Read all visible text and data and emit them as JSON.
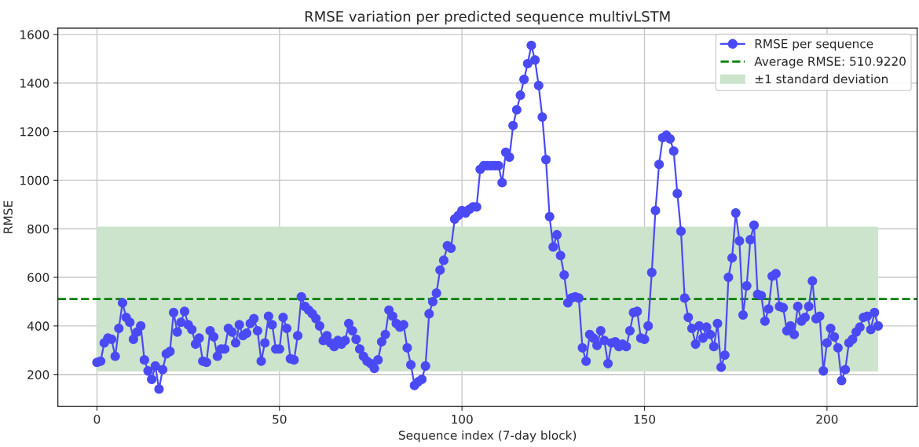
{
  "chart_data": {
    "type": "line",
    "title": "RMSE variation per predicted sequence multivLSTM",
    "xlabel": "Sequence index (7-day block)",
    "ylabel": "RMSE",
    "x": [
      0,
      1,
      2,
      3,
      4,
      5,
      6,
      7,
      8,
      9,
      10,
      11,
      12,
      13,
      14,
      15,
      16,
      17,
      18,
      19,
      20,
      21,
      22,
      23,
      24,
      25,
      26,
      27,
      28,
      29,
      30,
      31,
      32,
      33,
      34,
      35,
      36,
      37,
      38,
      39,
      40,
      41,
      42,
      43,
      44,
      45,
      46,
      47,
      48,
      49,
      50,
      51,
      52,
      53,
      54,
      55,
      56,
      57,
      58,
      59,
      60,
      61,
      62,
      63,
      64,
      65,
      66,
      67,
      68,
      69,
      70,
      71,
      72,
      73,
      74,
      75,
      76,
      77,
      78,
      79,
      80,
      81,
      82,
      83,
      84,
      85,
      86,
      87,
      88,
      89,
      90,
      91,
      92,
      93,
      94,
      95,
      96,
      97,
      98,
      99,
      100,
      101,
      102,
      103,
      104,
      105,
      106,
      107,
      108,
      109,
      110,
      111,
      112,
      113,
      114,
      115,
      116,
      117,
      118,
      119,
      120,
      121,
      122,
      123,
      124,
      125,
      126,
      127,
      128,
      129,
      130,
      131,
      132,
      133,
      134,
      135,
      136,
      137,
      138,
      139,
      140,
      141,
      142,
      143,
      144,
      145,
      146,
      147,
      148,
      149,
      150,
      151,
      152,
      153,
      154,
      155,
      156,
      157,
      158,
      159,
      160,
      161,
      162,
      163,
      164,
      165,
      166,
      167,
      168,
      169,
      170,
      171,
      172,
      173,
      174,
      175,
      176,
      177,
      178,
      179,
      180,
      181,
      182,
      183,
      184,
      185,
      186,
      187,
      188,
      189,
      190,
      191,
      192,
      193,
      194,
      195,
      196,
      197,
      198,
      199,
      200,
      201,
      202,
      203,
      204,
      205,
      206,
      207,
      208,
      209,
      210,
      211,
      212,
      213,
      214
    ],
    "series": [
      {
        "name": "RMSE per sequence",
        "color": "#4a4af5",
        "values": [
          250,
          255,
          330,
          350,
          345,
          275,
          390,
          495,
          435,
          415,
          345,
          375,
          400,
          260,
          215,
          180,
          235,
          140,
          220,
          285,
          295,
          455,
          375,
          415,
          460,
          405,
          385,
          325,
          350,
          255,
          250,
          380,
          355,
          275,
          305,
          305,
          390,
          375,
          330,
          405,
          360,
          370,
          410,
          430,
          380,
          255,
          330,
          440,
          405,
          305,
          305,
          435,
          390,
          265,
          260,
          360,
          520,
          480,
          465,
          450,
          430,
          400,
          340,
          360,
          330,
          315,
          340,
          325,
          340,
          410,
          380,
          345,
          305,
          275,
          255,
          245,
          225,
          260,
          335,
          365,
          465,
          440,
          410,
          395,
          405,
          310,
          240,
          155,
          170,
          180,
          235,
          450,
          500,
          535,
          630,
          670,
          730,
          720,
          840,
          855,
          875,
          865,
          880,
          890,
          890,
          1045,
          1060,
          1060,
          1060,
          1060,
          1060,
          990,
          1115,
          1095,
          1225,
          1290,
          1350,
          1415,
          1480,
          1555,
          1495,
          1390,
          1260,
          1085,
          850,
          725,
          775,
          690,
          610,
          495,
          515,
          520,
          515,
          310,
          255,
          365,
          350,
          320,
          380,
          340,
          245,
          330,
          335,
          315,
          325,
          315,
          380,
          455,
          460,
          350,
          345,
          400,
          620,
          875,
          1065,
          1175,
          1185,
          1170,
          1120,
          945,
          790,
          515,
          435,
          390,
          325,
          400,
          350,
          395,
          365,
          315,
          410,
          230,
          280,
          600,
          680,
          865,
          750,
          445,
          565,
          755,
          815,
          530,
          525,
          420,
          470,
          605,
          615,
          480,
          475,
          380,
          400,
          365,
          480,
          420,
          435,
          480,
          585,
          430,
          440,
          215,
          330,
          390,
          355,
          310,
          175,
          220,
          330,
          345,
          375,
          395,
          435,
          440,
          385,
          455,
          400
        ]
      }
    ],
    "marker": "circle",
    "line_style": "solid",
    "ref_lines": [
      {
        "axis": "y",
        "value": 510.922,
        "label": "Average RMSE: 510.9220",
        "color": "#008000",
        "line_style": "dashed"
      }
    ],
    "bands": [
      {
        "axis": "y",
        "from": 213,
        "to": 809,
        "label": "±1 standard deviation",
        "color": "#cce3cc"
      }
    ],
    "xlim": [
      -10.7,
      224.7
    ],
    "ylim": [
      69,
      1626
    ],
    "xticks": [
      0,
      50,
      100,
      150,
      200
    ],
    "yticks": [
      200,
      400,
      600,
      800,
      1000,
      1200,
      1400,
      1600
    ],
    "grid": true,
    "legend": "top right"
  }
}
